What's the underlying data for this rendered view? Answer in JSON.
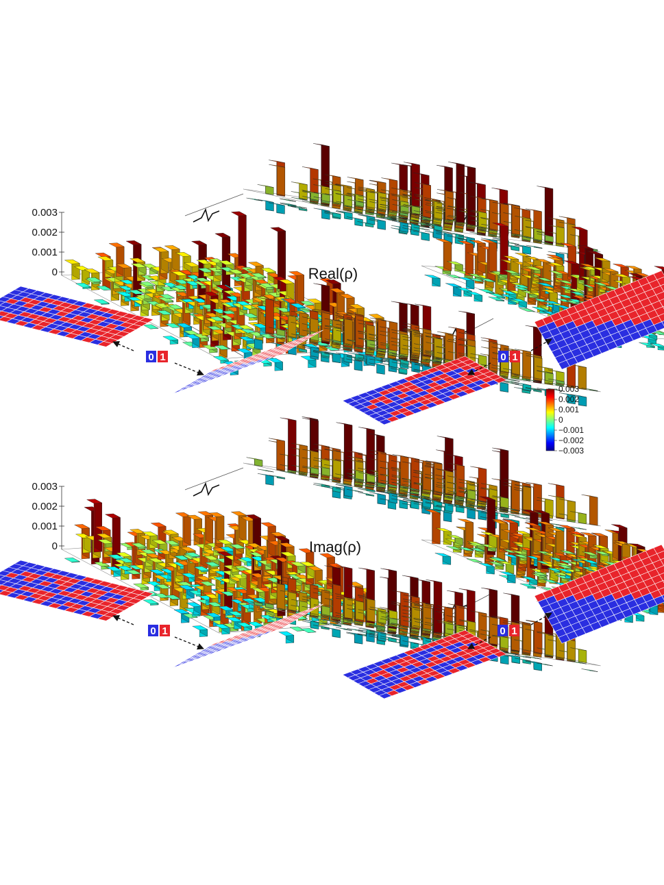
{
  "chart_data": {
    "type": "bar3d",
    "colors": {
      "bit_zero": "#2a2ee0",
      "bit_one": "#e8242b",
      "colormap": "jet"
    },
    "colorbar": {
      "ticks": [
        "0.003",
        "0.002",
        "0.001",
        "0",
        "−0.001",
        "−0.002",
        "−0.003"
      ],
      "range": [
        -0.003,
        0.003
      ]
    },
    "bit_legend": {
      "zero": "0",
      "one": "1"
    },
    "panels": [
      {
        "title": "Real(ρ)",
        "z_ticks": [
          "0.003",
          "0.002",
          "0.001",
          "0"
        ],
        "z_range": [
          0,
          0.003
        ],
        "matrix_size": 16
      },
      {
        "title": "Imag(ρ)",
        "z_ticks": [
          "0.003",
          "0.002",
          "0.001",
          "0"
        ],
        "z_range": [
          0,
          0.003
        ],
        "matrix_size": 16
      }
    ]
  }
}
